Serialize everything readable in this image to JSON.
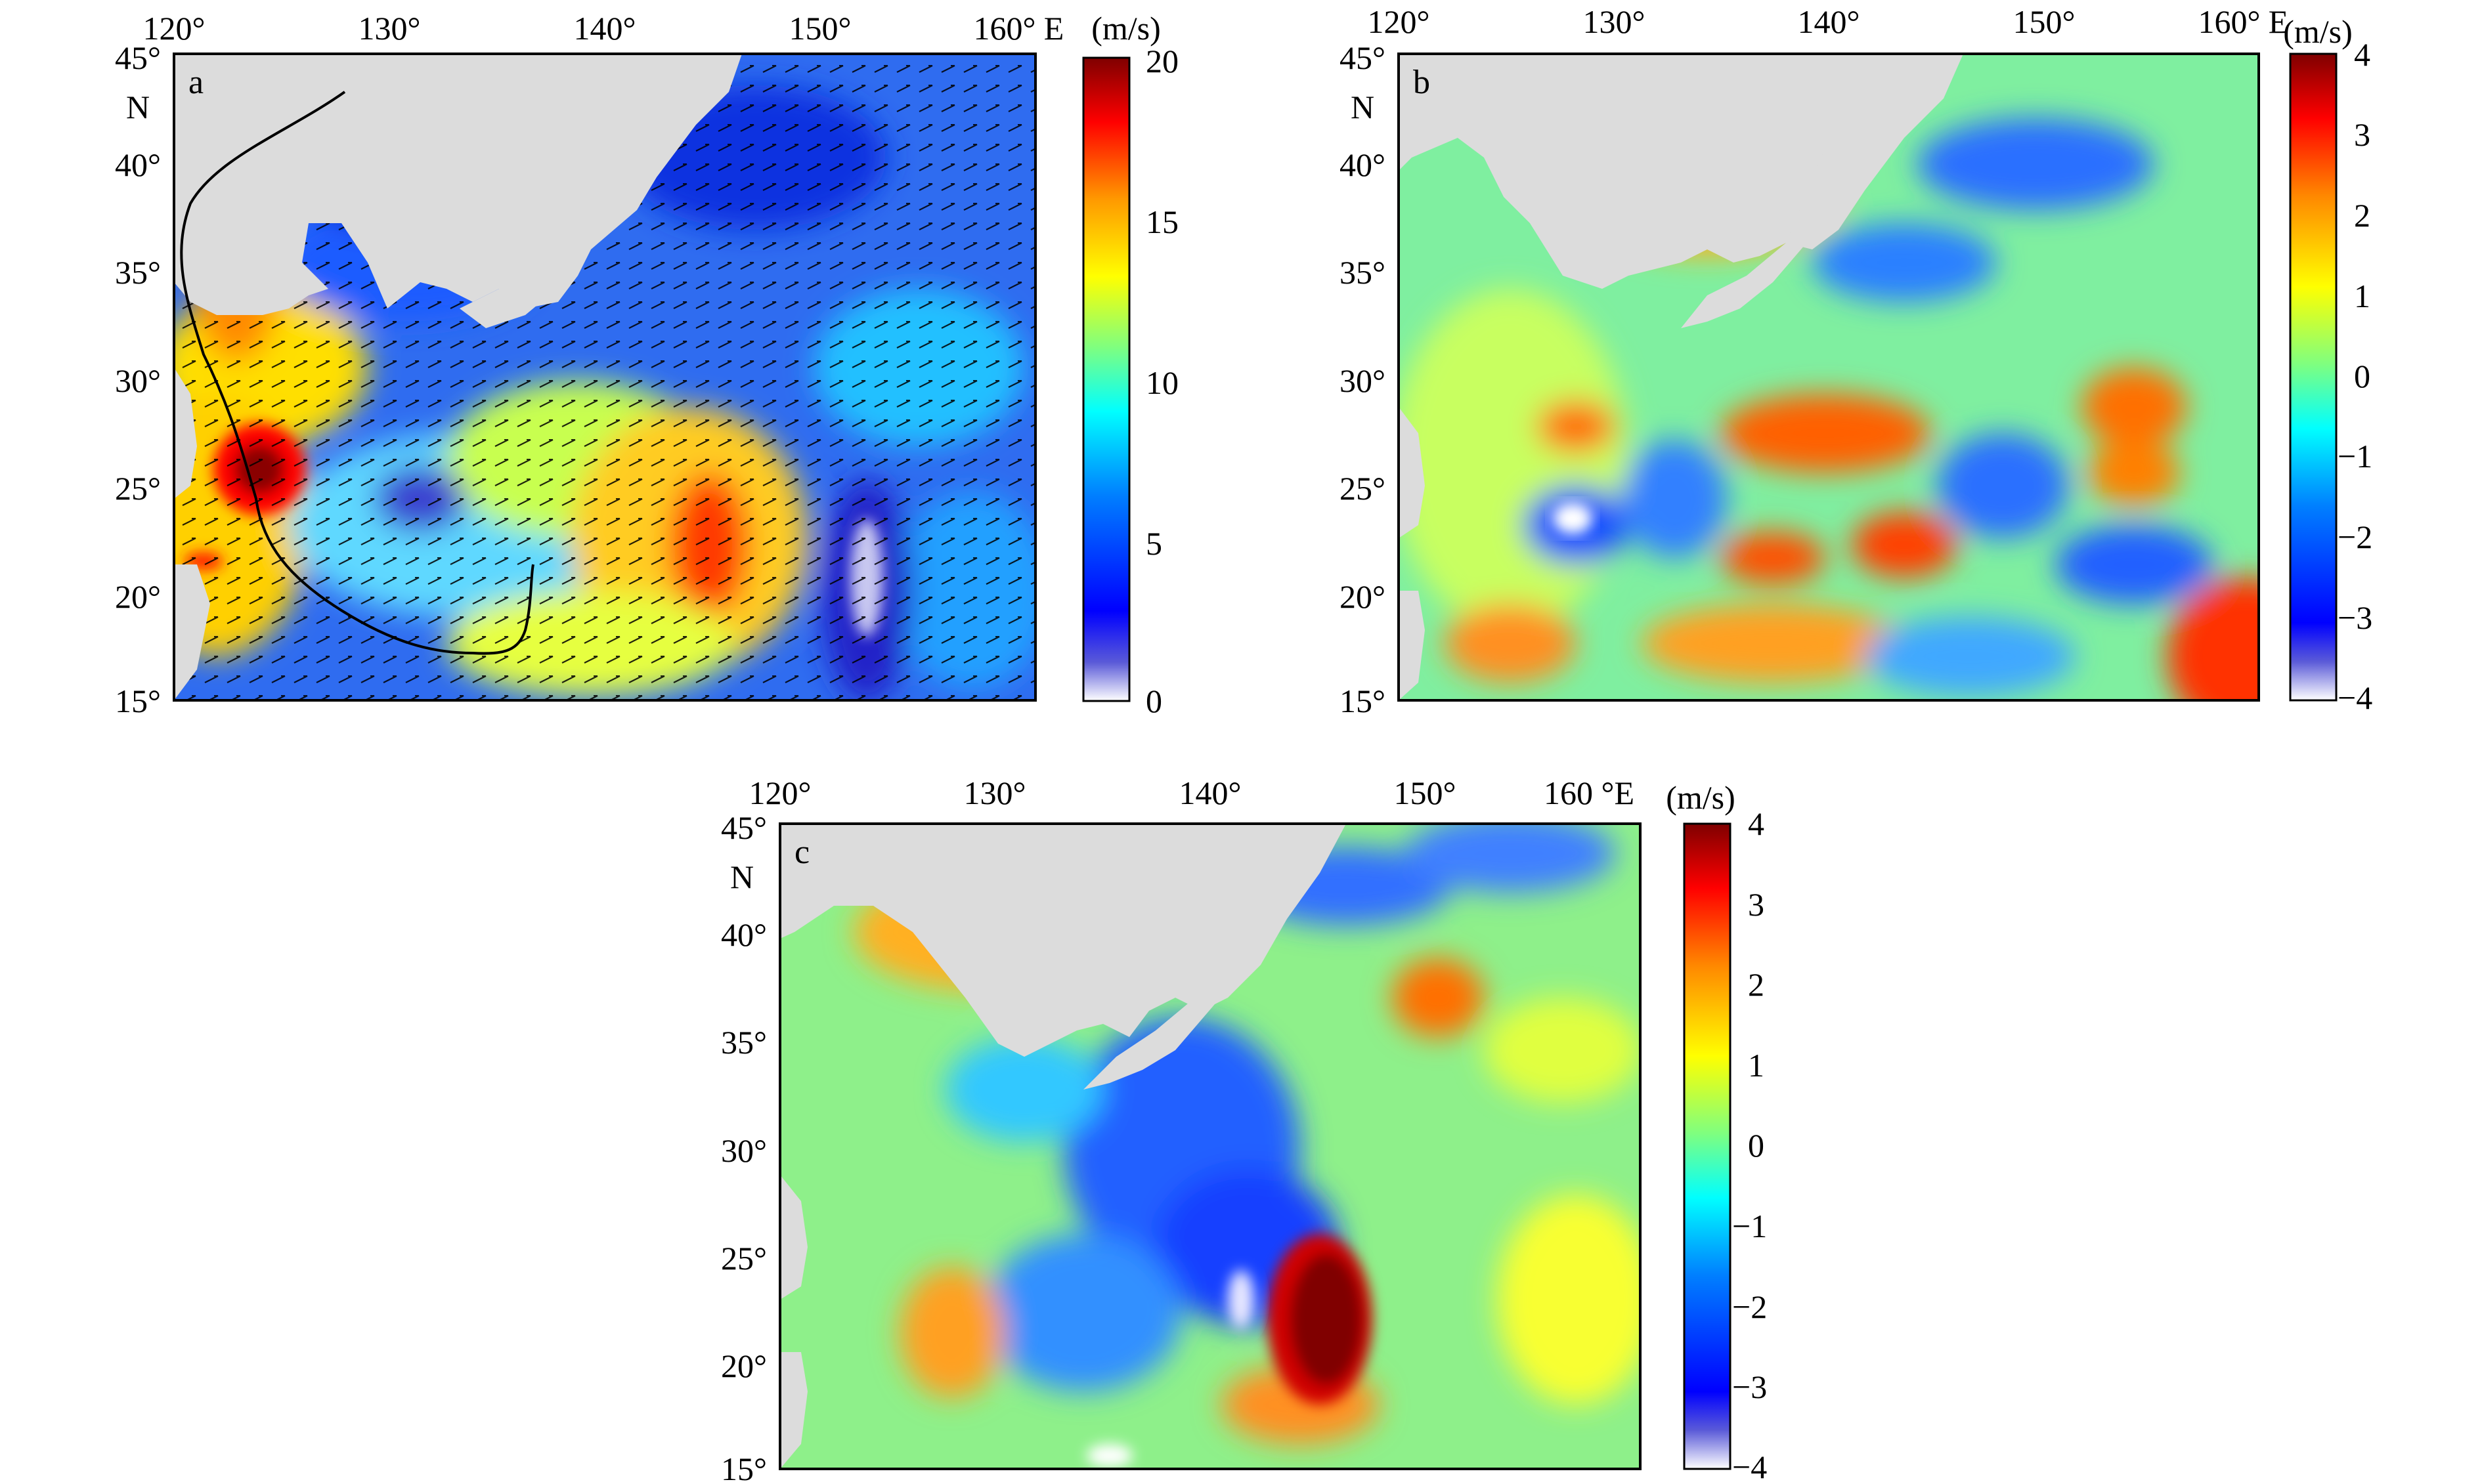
{
  "figure": {
    "panels": [
      {
        "id": "a",
        "label": "a",
        "lon_ticks": [
          "120°",
          "130°",
          "140°",
          "150°",
          "160°"
        ],
        "lon_unit": "E",
        "lat_ticks": [
          "45°",
          "40°",
          "35°",
          "30°",
          "25°",
          "20°",
          "15°"
        ],
        "lat_unit": "N",
        "colorbar": {
          "unit": "(m/s)",
          "ticks": [
            "20",
            "15",
            "10",
            "5",
            "0"
          ],
          "range": [
            0,
            20
          ]
        },
        "field": "wind speed with wind vectors",
        "typhoon_track": true
      },
      {
        "id": "b",
        "label": "b",
        "lon_ticks": [
          "120°",
          "130°",
          "140°",
          "150°",
          "160°"
        ],
        "lon_unit": "E",
        "lat_ticks": [
          "45°",
          "40°",
          "35°",
          "30°",
          "25°",
          "20°",
          "15°"
        ],
        "lat_unit": "N",
        "colorbar": {
          "unit": "(m/s)",
          "ticks": [
            "4",
            "3",
            "2",
            "1",
            "0",
            "−1",
            "−2",
            "−3",
            "−4"
          ],
          "range": [
            -4,
            4
          ]
        },
        "field": "wind speed difference"
      },
      {
        "id": "c",
        "label": "c",
        "lon_ticks": [
          "120°",
          "130°",
          "140°",
          "150°",
          "160 °E"
        ],
        "lon_unit": "",
        "lat_ticks": [
          "45°",
          "40°",
          "35°",
          "30°",
          "25°",
          "20°",
          "15°"
        ],
        "lat_unit": "N",
        "colorbar": {
          "unit": "(m/s)",
          "ticks": [
            "4",
            "3",
            "2",
            "1",
            "0",
            "−1",
            "−2",
            "−3",
            "−4"
          ],
          "range": [
            -4,
            4
          ]
        },
        "field": "wind speed difference"
      }
    ],
    "colors": {
      "land": "#dcdcdc",
      "colormap": [
        "#ffffff",
        "#00007f",
        "#0000ff",
        "#007fff",
        "#00ffff",
        "#7fff7f",
        "#ffff00",
        "#ff7f00",
        "#ff0000",
        "#7f0000"
      ],
      "track": "#000000"
    }
  }
}
